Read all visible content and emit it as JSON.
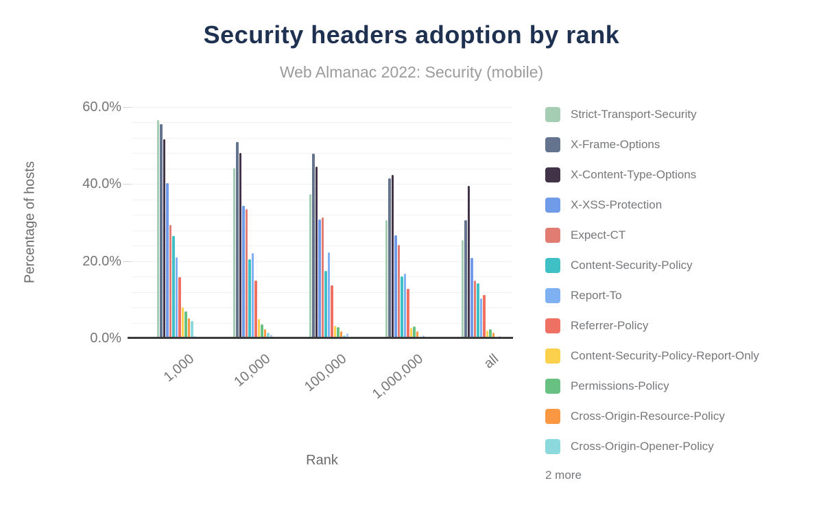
{
  "title": "Security headers adoption by rank",
  "subtitle": "Web Almanac 2022: Security (mobile)",
  "legend_more_label": "2 more",
  "colors": {
    "background": "#ffffff",
    "title": "#1e3150",
    "subtitle": "#9b9b9b",
    "axis_text": "#757575",
    "axis_title_text": "#6b6b6b",
    "axis_line": "#3b3b3b",
    "gridline": "#f1f1f1",
    "major_tick": "#d4d4d4",
    "legend_text": "#76777a"
  },
  "chart_data": {
    "type": "bar",
    "title": "Security headers adoption by rank",
    "subtitle": "Web Almanac 2022: Security (mobile)",
    "xlabel": "Rank",
    "ylabel": "Percentage of hosts",
    "ylim": [
      0,
      60
    ],
    "y_major_ticks": [
      {
        "value": 0,
        "label": "0.0%"
      },
      {
        "value": 20,
        "label": "20.0%"
      },
      {
        "value": 40,
        "label": "40.0%"
      },
      {
        "value": 60,
        "label": "60.0%"
      }
    ],
    "grid": "horizontal minor gridlines every 4%, light gray",
    "legend_position": "right",
    "categories": [
      "1,000",
      "10,000",
      "100,000",
      "1,000,000",
      "all"
    ],
    "series": [
      {
        "name": "Strict-Transport-Security",
        "color": "#a5cdb4",
        "in_legend": true,
        "values": [
          56.7,
          44.2,
          37.4,
          30.6,
          25.4
        ]
      },
      {
        "name": "X-Frame-Options",
        "color": "#64748f",
        "in_legend": true,
        "values": [
          55.5,
          50.9,
          47.9,
          41.4,
          30.7
        ]
      },
      {
        "name": "X-Content-Type-Options",
        "color": "#433349",
        "in_legend": true,
        "values": [
          51.7,
          48.1,
          44.6,
          42.3,
          39.5
        ]
      },
      {
        "name": "X-XSS-Protection",
        "color": "#6f9be8",
        "in_legend": true,
        "values": [
          40.2,
          34.3,
          30.8,
          26.7,
          20.8
        ]
      },
      {
        "name": "Expect-CT",
        "color": "#e17c72",
        "in_legend": true,
        "values": [
          29.3,
          33.4,
          31.4,
          24.2,
          15.0
        ]
      },
      {
        "name": "Content-Security-Policy",
        "color": "#3fc0c4",
        "in_legend": true,
        "values": [
          26.6,
          20.4,
          17.5,
          16.0,
          14.2
        ]
      },
      {
        "name": "Report-To",
        "color": "#7fb0f2",
        "in_legend": true,
        "values": [
          21.1,
          22.1,
          22.2,
          16.8,
          10.4
        ]
      },
      {
        "name": "Referrer-Policy",
        "color": "#ee7164",
        "in_legend": true,
        "values": [
          15.8,
          15.0,
          13.8,
          12.8,
          11.2
        ]
      },
      {
        "name": "Content-Security-Policy-Report-Only",
        "color": "#fbd04d",
        "in_legend": true,
        "values": [
          8.0,
          4.9,
          3.2,
          2.7,
          2.0
        ]
      },
      {
        "name": "Permissions-Policy",
        "color": "#69c181",
        "in_legend": true,
        "values": [
          6.9,
          3.6,
          2.9,
          3.0,
          2.4
        ]
      },
      {
        "name": "Cross-Origin-Resource-Policy",
        "color": "#fa9742",
        "in_legend": true,
        "values": [
          5.1,
          2.3,
          1.8,
          1.7,
          1.4
        ]
      },
      {
        "name": "Cross-Origin-Opener-Policy",
        "color": "#8bd9dd",
        "in_legend": true,
        "values": [
          4.4,
          1.5,
          0.7,
          0.4,
          0.4
        ]
      },
      {
        "name": "",
        "color": "#adc9f8",
        "in_legend": false,
        "values": [
          0.6,
          0.9,
          1.2,
          0.8,
          0.5
        ]
      },
      {
        "name": "",
        "color": "#f2948c",
        "in_legend": false,
        "values": [
          0.2,
          0.1,
          0.2,
          0.2,
          0.2
        ]
      }
    ]
  }
}
